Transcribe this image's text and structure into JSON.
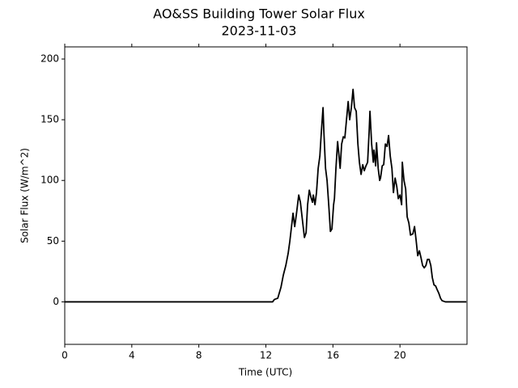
{
  "chart_data": {
    "type": "line",
    "title": "AO&SS Building Tower Solar Flux",
    "subtitle": "2023-11-03",
    "x_label": "Time (UTC)",
    "y_label": "Solar Flux (W/m^2)",
    "color": "#000000",
    "xlim": [
      0,
      24
    ],
    "ylim": [
      -35,
      210
    ],
    "xticks": [
      0,
      4,
      8,
      12,
      16,
      20
    ],
    "yticks": [
      0,
      50,
      100,
      150,
      200
    ],
    "x": [
      0,
      12.4,
      12.51,
      12.71,
      12.9,
      13.04,
      13.19,
      13.33,
      13.43,
      13.53,
      13.62,
      13.72,
      13.82,
      13.96,
      14.06,
      14.2,
      14.3,
      14.4,
      14.49,
      14.59,
      14.69,
      14.78,
      14.83,
      14.93,
      15.02,
      15.12,
      15.22,
      15.31,
      15.41,
      15.46,
      15.56,
      15.65,
      15.75,
      15.85,
      15.94,
      16.04,
      16.09,
      16.18,
      16.28,
      16.33,
      16.43,
      16.52,
      16.62,
      16.71,
      16.81,
      16.91,
      17.0,
      17.1,
      17.2,
      17.29,
      17.39,
      17.49,
      17.58,
      17.68,
      17.78,
      17.87,
      17.97,
      18.07,
      18.16,
      18.21,
      18.31,
      18.41,
      18.45,
      18.55,
      18.6,
      18.7,
      18.79,
      18.84,
      18.94,
      19.03,
      19.13,
      19.23,
      19.32,
      19.42,
      19.52,
      19.61,
      19.71,
      19.81,
      19.9,
      20.0,
      20.1,
      20.14,
      20.24,
      20.34,
      20.43,
      20.53,
      20.63,
      20.77,
      20.87,
      20.97,
      21.06,
      21.16,
      21.26,
      21.35,
      21.45,
      21.55,
      21.64,
      21.74,
      21.84,
      21.93,
      22.03,
      22.13,
      22.22,
      22.32,
      22.42,
      22.51,
      22.71,
      23.96
    ],
    "y": [
      0,
      0,
      2,
      3,
      12,
      22,
      30,
      40,
      50,
      62,
      73,
      62,
      72,
      88,
      82,
      65,
      53,
      57,
      80,
      92,
      86,
      82,
      88,
      80,
      90,
      110,
      120,
      140,
      160,
      140,
      110,
      100,
      80,
      58,
      60,
      80,
      85,
      110,
      132,
      125,
      110,
      130,
      136,
      135,
      150,
      165,
      150,
      160,
      175,
      160,
      157,
      130,
      115,
      105,
      113,
      108,
      112,
      115,
      140,
      157,
      130,
      115,
      125,
      112,
      131,
      110,
      100,
      102,
      112,
      113,
      130,
      128,
      137,
      120,
      110,
      90,
      102,
      95,
      85,
      88,
      80,
      115,
      100,
      93,
      70,
      65,
      55,
      56,
      62,
      50,
      38,
      42,
      36,
      30,
      28,
      30,
      35,
      35,
      30,
      20,
      14,
      13,
      10,
      7,
      3,
      1,
      0,
      0
    ]
  }
}
